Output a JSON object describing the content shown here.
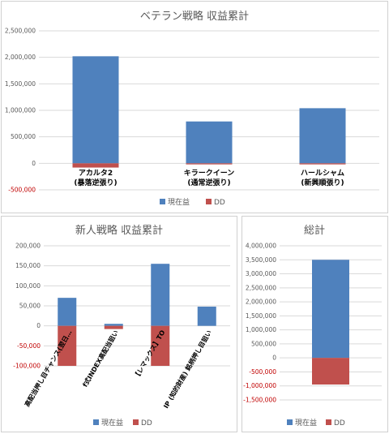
{
  "colors": {
    "profit": "#4f81bd",
    "dd": "#c0504d",
    "grid": "#d9d9d9",
    "axis_text": "#595959",
    "negative_tick": "#c00000"
  },
  "legend": {
    "profit": "現在益",
    "dd": "DD"
  },
  "chart_data": [
    {
      "type": "bar",
      "stacked": true,
      "title": "ベテラン戦略 収益累計",
      "categories": [
        [
          "アカルタ2",
          "(暴落逆張り)"
        ],
        [
          "キラークイーン",
          "(通常逆張り)"
        ],
        [
          "ハールシャム",
          "(新興順張り)"
        ]
      ],
      "series": [
        {
          "name": "現在益",
          "values": [
            2020000,
            790000,
            1040000
          ]
        },
        {
          "name": "DD",
          "values": [
            -80000,
            -20000,
            -20000
          ]
        }
      ],
      "ylim": [
        -500000,
        2500000
      ],
      "yticks": [
        2500000,
        2000000,
        1500000,
        1000000,
        500000,
        0,
        -500000
      ],
      "ytick_labels": [
        "2,500,000",
        "2,000,000",
        "1,500,000",
        "1,000,000",
        "500,000",
        "0",
        "-500,000"
      ],
      "grid": true,
      "legend_position": "bottom"
    },
    {
      "type": "bar",
      "stacked": true,
      "title": "新人戦略 収益累計",
      "categories": [
        "高配当押し目チャンス(翌日…",
        "f式INDEX高配当狙い",
        "【レマックス】TO",
        "IP (知的財産) 銘柄押し目狙い"
      ],
      "series": [
        {
          "name": "現在益",
          "values": [
            70000,
            5000,
            155000,
            48000
          ]
        },
        {
          "name": "DD",
          "values": [
            -100000,
            -8000,
            -100000,
            0
          ]
        }
      ],
      "ylim": [
        -100000,
        200000
      ],
      "yticks": [
        200000,
        150000,
        100000,
        50000,
        0,
        -50000,
        -100000
      ],
      "ytick_labels": [
        "200,000",
        "150,000",
        "100,000",
        "50,000",
        "0",
        "-50,000",
        "-100,000"
      ],
      "grid": true,
      "legend_position": "bottom"
    },
    {
      "type": "bar",
      "stacked": true,
      "title": "総計",
      "categories": [
        ""
      ],
      "series": [
        {
          "name": "現在益",
          "values": [
            3500000
          ]
        },
        {
          "name": "DD",
          "values": [
            -950000
          ]
        }
      ],
      "ylim": [
        -1500000,
        4000000
      ],
      "yticks": [
        4000000,
        3500000,
        3000000,
        2500000,
        2000000,
        1500000,
        1000000,
        500000,
        0,
        -500000,
        -1000000,
        -1500000
      ],
      "ytick_labels": [
        "4,000,000",
        "3,500,000",
        "3,000,000",
        "2,500,000",
        "2,000,000",
        "1,500,000",
        "1,000,000",
        "500,000",
        "0",
        "-500,000",
        "-1,000,000",
        "-1,500,000"
      ],
      "grid": true,
      "legend_position": "bottom"
    }
  ]
}
